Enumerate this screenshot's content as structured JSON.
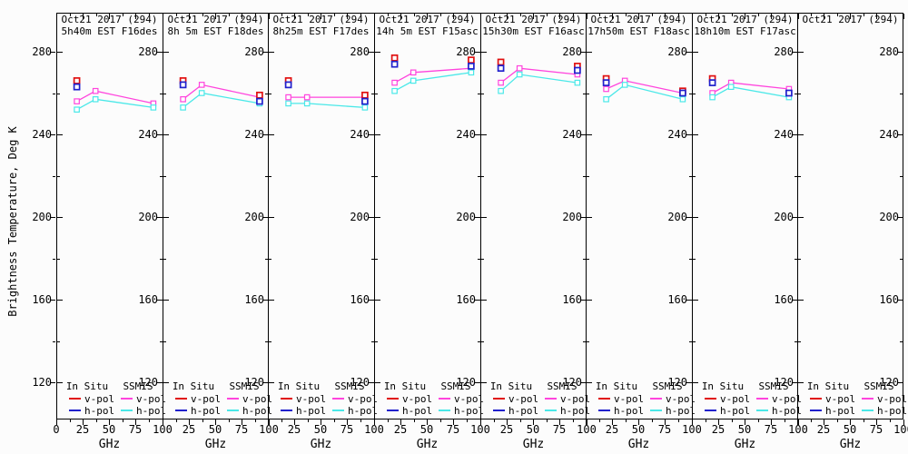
{
  "y_axis_title": "Brightness Temperature, Deg K",
  "chart_data": {
    "type": "line",
    "xlabel": "GHz",
    "ylabel": "Brightness Temperature, Deg K",
    "xlim": [
      0,
      100
    ],
    "ylim": [
      102,
      299
    ],
    "grid": false,
    "x_major_ticks": [
      0,
      25,
      50,
      75,
      100
    ],
    "x_minor_ticks": [
      12.5,
      37.5,
      62.5,
      87.5
    ],
    "y_major_ticks": [
      280,
      240,
      200,
      160,
      120
    ],
    "y_minor_ticks": [
      260,
      220,
      180,
      140
    ],
    "legend": {
      "col1_header": "In Situ",
      "col2_header": "SSMIS",
      "v_label": "v-pol",
      "h_label": "h-pol",
      "position": "bottom-inside"
    },
    "colors": {
      "insitu_v": "#e01010",
      "insitu_h": "#2020cc",
      "ssmis_v": "#ff44dd",
      "ssmis_h": "#4ae8e8",
      "axis": "#000000"
    },
    "panels": [
      {
        "title1": "Oct21 2017 (294)",
        "title2": "5h40m EST F16des",
        "insitu_v": {
          "x": [
            19.35
          ],
          "y": [
            266
          ]
        },
        "insitu_h": {
          "x": [
            19.35
          ],
          "y": [
            263
          ]
        },
        "ssmis_v": {
          "x": [
            19.35,
            37,
            91.655
          ],
          "y": [
            256,
            261,
            255
          ]
        },
        "ssmis_h": {
          "x": [
            19.35,
            37,
            91.655
          ],
          "y": [
            252,
            257,
            253
          ]
        }
      },
      {
        "title1": "Oct21 2017 (294)",
        "title2": "8h 5m EST F18des",
        "insitu_v": {
          "x": [
            19.35,
            91.655
          ],
          "y": [
            266,
            259
          ]
        },
        "insitu_h": {
          "x": [
            19.35,
            91.655
          ],
          "y": [
            264,
            256
          ]
        },
        "ssmis_v": {
          "x": [
            19.35,
            37,
            91.655
          ],
          "y": [
            257,
            264,
            258
          ]
        },
        "ssmis_h": {
          "x": [
            19.35,
            37,
            91.655
          ],
          "y": [
            253,
            260,
            255
          ]
        }
      },
      {
        "title1": "Oct21 2017 (294)",
        "title2": "8h25m EST F17des",
        "insitu_v": {
          "x": [
            19.35,
            91.655
          ],
          "y": [
            266,
            259
          ]
        },
        "insitu_h": {
          "x": [
            19.35,
            91.655
          ],
          "y": [
            264,
            256
          ]
        },
        "ssmis_v": {
          "x": [
            19.35,
            37,
            91.655
          ],
          "y": [
            258,
            258,
            258
          ]
        },
        "ssmis_h": {
          "x": [
            19.35,
            37,
            91.655
          ],
          "y": [
            255,
            255,
            253
          ]
        }
      },
      {
        "title1": "Oct21 2017 (294)",
        "title2": "14h 5m EST F15asc",
        "insitu_v": {
          "x": [
            19.35,
            91.655
          ],
          "y": [
            277,
            276
          ]
        },
        "insitu_h": {
          "x": [
            19.35,
            91.655
          ],
          "y": [
            274,
            273
          ]
        },
        "ssmis_v": {
          "x": [
            19.35,
            37,
            91.655
          ],
          "y": [
            265,
            270,
            272
          ]
        },
        "ssmis_h": {
          "x": [
            19.35,
            37,
            91.655
          ],
          "y": [
            261,
            266,
            270
          ]
        }
      },
      {
        "title1": "Oct21 2017 (294)",
        "title2": "15h30m EST F16asc",
        "insitu_v": {
          "x": [
            19.35,
            91.655
          ],
          "y": [
            275,
            273
          ]
        },
        "insitu_h": {
          "x": [
            19.35,
            91.655
          ],
          "y": [
            272,
            271
          ]
        },
        "ssmis_v": {
          "x": [
            19.35,
            37,
            91.655
          ],
          "y": [
            265,
            272,
            269
          ]
        },
        "ssmis_h": {
          "x": [
            19.35,
            37,
            91.655
          ],
          "y": [
            261,
            269,
            265
          ]
        }
      },
      {
        "title1": "Oct21 2017 (294)",
        "title2": "17h50m EST F18asc",
        "insitu_v": {
          "x": [
            19.35,
            91.655
          ],
          "y": [
            267,
            261
          ]
        },
        "insitu_h": {
          "x": [
            19.35,
            91.655
          ],
          "y": [
            265,
            260
          ]
        },
        "ssmis_v": {
          "x": [
            19.35,
            37,
            91.655
          ],
          "y": [
            262,
            266,
            260
          ]
        },
        "ssmis_h": {
          "x": [
            19.35,
            37,
            91.655
          ],
          "y": [
            257,
            264,
            257
          ]
        }
      },
      {
        "title1": "Oct21 2017 (294)",
        "title2": "18h10m EST F17asc",
        "insitu_v": {
          "x": [
            19.35
          ],
          "y": [
            267
          ]
        },
        "insitu_h": {
          "x": [
            19.35,
            91.655
          ],
          "y": [
            265,
            260
          ]
        },
        "ssmis_v": {
          "x": [
            19.35,
            37,
            91.655
          ],
          "y": [
            260,
            265,
            262
          ]
        },
        "ssmis_h": {
          "x": [
            19.35,
            37,
            91.655
          ],
          "y": [
            258,
            263,
            258
          ]
        }
      },
      {
        "title1": "Oct21 2017 (294)",
        "title2": "",
        "insitu_v": {
          "x": [],
          "y": []
        },
        "insitu_h": {
          "x": [],
          "y": []
        },
        "ssmis_v": {
          "x": [],
          "y": []
        },
        "ssmis_h": {
          "x": [],
          "y": []
        }
      }
    ]
  }
}
